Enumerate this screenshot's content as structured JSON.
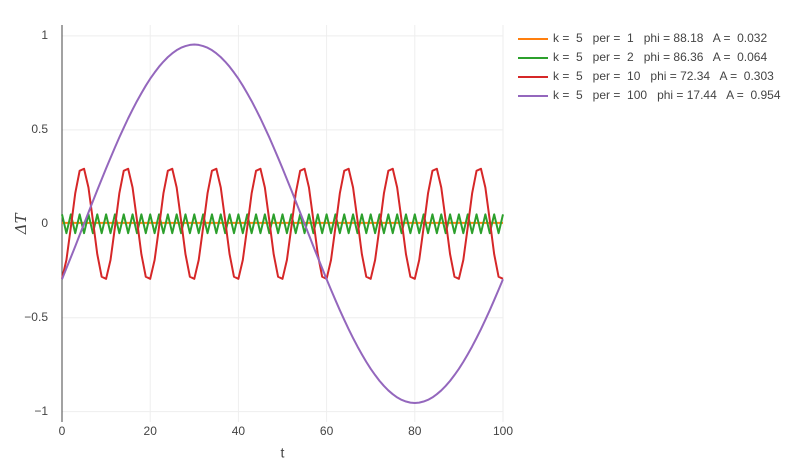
{
  "chart_data": {
    "type": "line",
    "x_label": "t",
    "y_label": "ΔT",
    "x": [
      0,
      1,
      2,
      3,
      4,
      5,
      6,
      7,
      8,
      9,
      10,
      11,
      12,
      13,
      14,
      15,
      16,
      17,
      18,
      19,
      20,
      21,
      22,
      23,
      24,
      25,
      26,
      27,
      28,
      29,
      30,
      31,
      32,
      33,
      34,
      35,
      36,
      37,
      38,
      39,
      40,
      41,
      42,
      43,
      44,
      45,
      46,
      47,
      48,
      49,
      50,
      51,
      52,
      53,
      54,
      55,
      56,
      57,
      58,
      59,
      60,
      61,
      62,
      63,
      64,
      65,
      66,
      67,
      68,
      69,
      70,
      71,
      72,
      73,
      74,
      75,
      76,
      77,
      78,
      79,
      80,
      81,
      82,
      83,
      84,
      85,
      86,
      87,
      88,
      89,
      90,
      91,
      92,
      93,
      94,
      95,
      96,
      97,
      98,
      99,
      100
    ],
    "series": [
      {
        "name": "k =  5   per =  1   phi = 88.18   A =  0.032",
        "color": "#ff7f0e",
        "values": [
          0.005,
          0.005,
          0.005,
          0.005,
          0.005,
          0.005,
          0.005,
          0.005,
          0.005,
          0.005,
          0.005,
          0.005,
          0.005,
          0.005,
          0.005,
          0.005,
          0.005,
          0.005,
          0.005,
          0.005,
          0.005,
          0.005,
          0.005,
          0.005,
          0.005,
          0.005,
          0.005,
          0.005,
          0.005,
          0.005,
          0.005,
          0.005,
          0.005,
          0.005,
          0.005,
          0.005,
          0.005,
          0.005,
          0.005,
          0.005,
          0.005,
          0.005,
          0.005,
          0.005,
          0.005,
          0.005,
          0.005,
          0.005,
          0.005,
          0.005,
          0.005,
          0.005,
          0.005,
          0.005,
          0.005,
          0.005,
          0.005,
          0.005,
          0.005,
          0.005,
          0.005,
          0.005,
          0.005,
          0.005,
          0.005,
          0.005,
          0.005,
          0.005,
          0.005,
          0.005,
          0.005,
          0.005,
          0.005,
          0.005,
          0.005,
          0.005,
          0.005,
          0.005,
          0.005,
          0.005,
          0.005,
          0.005,
          0.005,
          0.005,
          0.005,
          0.005,
          0.005,
          0.005,
          0.005,
          0.005,
          0.005,
          0.005,
          0.005,
          0.005,
          0.005,
          0.005,
          0.005,
          0.005,
          0.005,
          0.005,
          0.005
        ]
      },
      {
        "name": "k =  5   per =  2   phi = 86.36   A =  0.064",
        "color": "#2ca02c",
        "values": [
          0.05,
          -0.05,
          0.05,
          -0.05,
          0.05,
          -0.05,
          0.05,
          -0.05,
          0.05,
          -0.05,
          0.05,
          -0.05,
          0.05,
          -0.05,
          0.05,
          -0.05,
          0.05,
          -0.05,
          0.05,
          -0.05,
          0.05,
          -0.05,
          0.05,
          -0.05,
          0.05,
          -0.05,
          0.05,
          -0.05,
          0.05,
          -0.05,
          0.05,
          -0.05,
          0.05,
          -0.05,
          0.05,
          -0.05,
          0.05,
          -0.05,
          0.05,
          -0.05,
          0.05,
          -0.05,
          0.05,
          -0.05,
          0.05,
          -0.05,
          0.05,
          -0.05,
          0.05,
          -0.05,
          0.05,
          -0.05,
          0.05,
          -0.05,
          0.05,
          -0.05,
          0.05,
          -0.05,
          0.05,
          -0.05,
          0.05,
          -0.05,
          0.05,
          -0.05,
          0.05,
          -0.05,
          0.05,
          -0.05,
          0.05,
          -0.05,
          0.05,
          -0.05,
          0.05,
          -0.05,
          0.05,
          -0.05,
          0.05,
          -0.05,
          0.05,
          -0.05,
          0.05,
          -0.05,
          0.05,
          -0.05,
          0.05,
          -0.05,
          0.05,
          -0.05,
          0.05,
          -0.05,
          0.05,
          -0.05,
          0.05,
          -0.05,
          0.05,
          -0.05,
          0.05,
          -0.05,
          0.05,
          -0.05,
          0.05
        ]
      },
      {
        "name": "k =  5   per =  10   phi = 72.34   A =  0.303",
        "color": "#d62728",
        "values": [
          -0.293,
          -0.193,
          -0.019,
          0.162,
          0.282,
          0.293,
          0.193,
          0.019,
          -0.162,
          -0.282,
          -0.293,
          -0.193,
          -0.019,
          0.162,
          0.282,
          0.293,
          0.193,
          0.019,
          -0.162,
          -0.282,
          -0.293,
          -0.193,
          -0.019,
          0.162,
          0.282,
          0.293,
          0.193,
          0.019,
          -0.162,
          -0.282,
          -0.293,
          -0.193,
          -0.019,
          0.162,
          0.282,
          0.293,
          0.193,
          0.019,
          -0.162,
          -0.282,
          -0.293,
          -0.193,
          -0.019,
          0.162,
          0.282,
          0.293,
          0.193,
          0.019,
          -0.162,
          -0.282,
          -0.293,
          -0.193,
          -0.019,
          0.162,
          0.282,
          0.293,
          0.193,
          0.019,
          -0.162,
          -0.282,
          -0.293,
          -0.193,
          -0.019,
          0.162,
          0.282,
          0.293,
          0.193,
          0.019,
          -0.162,
          -0.282,
          -0.293,
          -0.193,
          -0.019,
          0.162,
          0.282,
          0.293,
          0.193,
          0.019,
          -0.162,
          -0.282,
          -0.293,
          -0.193,
          -0.019,
          0.162,
          0.282,
          0.293,
          0.193,
          0.019,
          -0.162,
          -0.282,
          -0.293,
          -0.193,
          -0.019,
          0.162,
          0.282,
          0.293,
          0.193,
          0.019,
          -0.162,
          -0.282,
          -0.293
        ]
      },
      {
        "name": "k =  5   per =  100   phi = 17.44   A =  0.954",
        "color": "#9467bd",
        "values": [
          -0.295,
          -0.237,
          -0.179,
          -0.12,
          -0.06,
          0,
          0.06,
          0.12,
          0.179,
          0.237,
          0.295,
          0.351,
          0.406,
          0.46,
          0.511,
          0.561,
          0.608,
          0.653,
          0.695,
          0.735,
          0.772,
          0.805,
          0.836,
          0.863,
          0.887,
          0.907,
          0.924,
          0.937,
          0.946,
          0.952,
          0.954,
          0.952,
          0.946,
          0.937,
          0.924,
          0.907,
          0.887,
          0.863,
          0.836,
          0.805,
          0.772,
          0.735,
          0.695,
          0.653,
          0.608,
          0.561,
          0.511,
          0.46,
          0.406,
          0.351,
          0.295,
          0.237,
          0.179,
          0.12,
          0.06,
          0,
          -0.06,
          -0.12,
          -0.179,
          -0.237,
          -0.295,
          -0.351,
          -0.406,
          -0.46,
          -0.511,
          -0.561,
          -0.608,
          -0.653,
          -0.695,
          -0.735,
          -0.772,
          -0.805,
          -0.836,
          -0.863,
          -0.887,
          -0.907,
          -0.924,
          -0.937,
          -0.946,
          -0.952,
          -0.954,
          -0.952,
          -0.946,
          -0.937,
          -0.924,
          -0.907,
          -0.887,
          -0.863,
          -0.836,
          -0.805,
          -0.772,
          -0.735,
          -0.695,
          -0.653,
          -0.608,
          -0.561,
          -0.511,
          -0.46,
          -0.406,
          -0.351,
          -0.295
        ]
      }
    ],
    "xlim": [
      0,
      100
    ],
    "xticks": [
      0,
      20,
      40,
      60,
      80,
      100
    ],
    "ylim": [
      -1.055,
      1.058
    ],
    "yticks": [
      {
        "value": -1,
        "label": "−1"
      },
      {
        "value": -0.5,
        "label": "−0.5"
      },
      0,
      0.5,
      1
    ],
    "grid": true,
    "legend": "right"
  }
}
